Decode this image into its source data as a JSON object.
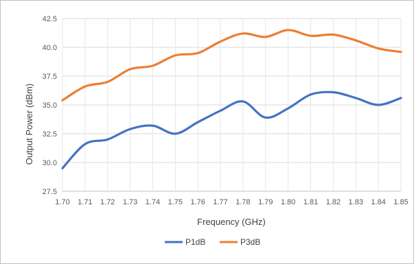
{
  "chart_data": {
    "type": "line",
    "title": "",
    "xlabel": "Frequency (GHz)",
    "ylabel": "Output Power (dBm)",
    "x": [
      1.7,
      1.71,
      1.72,
      1.73,
      1.74,
      1.75,
      1.76,
      1.77,
      1.78,
      1.79,
      1.8,
      1.81,
      1.82,
      1.83,
      1.84,
      1.85
    ],
    "x_tick_labels": [
      "1.70",
      "1.71",
      "1.72",
      "1.73",
      "1.74",
      "1.75",
      "1.76",
      "1.77",
      "1.78",
      "1.79",
      "1.80",
      "1.81",
      "1.82",
      "1.83",
      "1.84",
      "1.85"
    ],
    "y_tick_labels": [
      "27.5",
      "30.0",
      "32.5",
      "35.0",
      "37.5",
      "40.0",
      "42.5"
    ],
    "y_ticks": [
      27.5,
      30.0,
      32.5,
      35.0,
      37.5,
      40.0,
      42.5
    ],
    "ylim": [
      27.5,
      42.5
    ],
    "xlim": [
      1.7,
      1.85
    ],
    "grid": "vertical and horizontal",
    "legend_position": "bottom",
    "series": [
      {
        "name": "P1dB",
        "color": "#4472c4",
        "values": [
          29.5,
          31.6,
          32.0,
          32.9,
          33.2,
          32.5,
          33.5,
          34.5,
          35.3,
          33.9,
          34.7,
          35.9,
          36.1,
          35.6,
          35.0,
          35.6
        ]
      },
      {
        "name": "P3dB",
        "color": "#ed7d31",
        "values": [
          35.4,
          36.6,
          37.0,
          38.1,
          38.4,
          39.3,
          39.5,
          40.5,
          41.2,
          40.9,
          41.5,
          41.0,
          41.1,
          40.6,
          39.9,
          39.6
        ]
      }
    ]
  }
}
